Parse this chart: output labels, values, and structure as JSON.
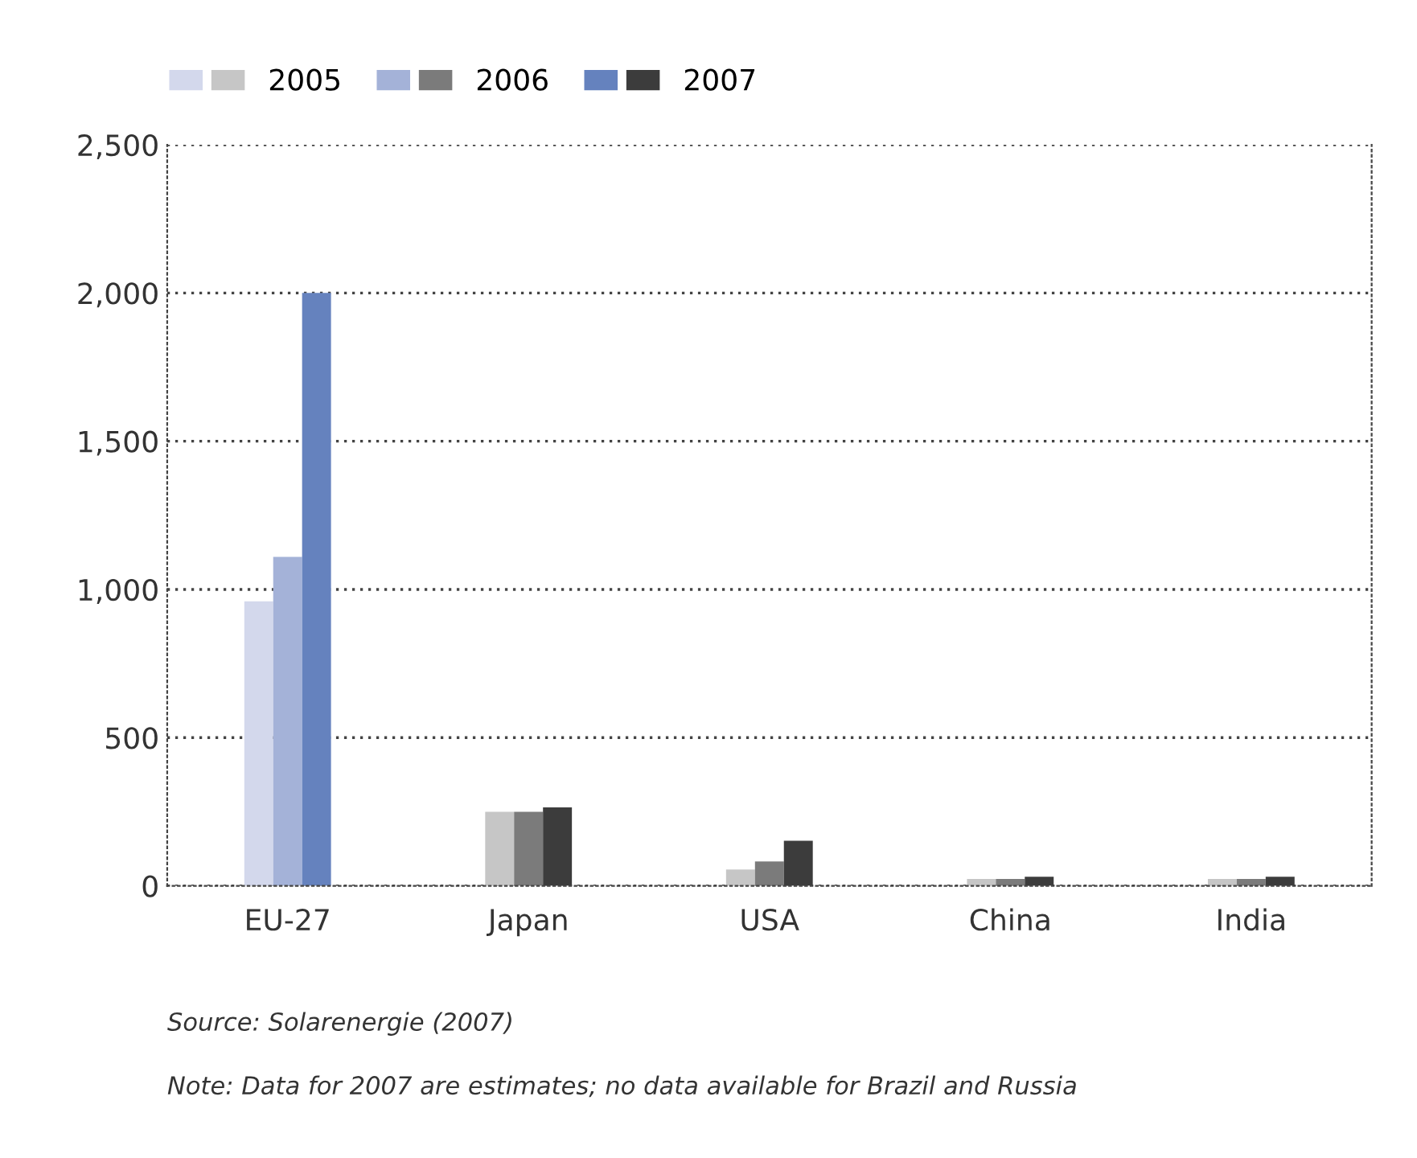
{
  "chart_data": {
    "type": "bar",
    "categories": [
      "EU-27",
      "Japan",
      "USA",
      "China",
      "India"
    ],
    "series": [
      {
        "name": "2005",
        "colors": [
          "#d3d8ec",
          "#c6c6c6",
          "#c6c6c6",
          "#c6c6c6",
          "#c6c6c6"
        ],
        "values": [
          960,
          250,
          55,
          23,
          23
        ]
      },
      {
        "name": "2006",
        "colors": [
          "#a4b2d8",
          "#7b7b7b",
          "#7b7b7b",
          "#7b7b7b",
          "#7b7b7b"
        ],
        "values": [
          1110,
          250,
          82,
          23,
          23
        ]
      },
      {
        "name": "2007",
        "colors": [
          "#6582be",
          "#3c3c3c",
          "#3c3c3c",
          "#3c3c3c",
          "#3c3c3c"
        ],
        "values": [
          2000,
          265,
          152,
          31,
          31
        ]
      }
    ],
    "ylim": [
      0,
      2500
    ],
    "yticks": [
      {
        "value": 0,
        "label": "0"
      },
      {
        "value": 500,
        "label": "500"
      },
      {
        "value": 1000,
        "label": "1,000"
      },
      {
        "value": 1500,
        "label": "1,500"
      },
      {
        "value": 2000,
        "label": "2,000"
      },
      {
        "value": 2500,
        "label": "2,500"
      }
    ],
    "grid": "y",
    "legend": "top left",
    "annotations": [
      "Source: Solarenergie (2007)",
      "Note: Data for 2007 are estimates; no data available for Brazil and Russia"
    ]
  }
}
